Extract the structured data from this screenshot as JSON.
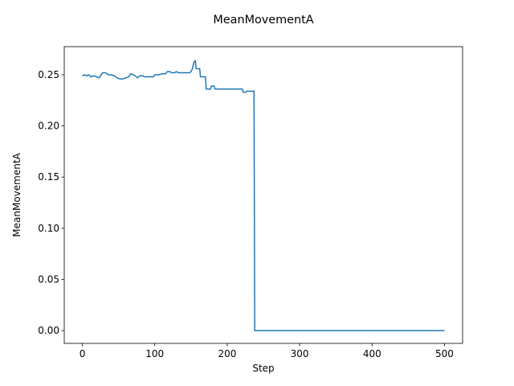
{
  "chart_data": {
    "type": "line",
    "title": "MeanMovementA",
    "xlabel": "Step",
    "ylabel": "MeanMovementA",
    "xlim": [
      -25,
      525
    ],
    "ylim": [
      -0.0125,
      0.2775
    ],
    "xticks": [
      0,
      100,
      200,
      300,
      400,
      500
    ],
    "xtick_labels": [
      "0",
      "100",
      "200",
      "300",
      "400",
      "500"
    ],
    "yticks": [
      0.0,
      0.05,
      0.1,
      0.15,
      0.2,
      0.25
    ],
    "ytick_labels": [
      "0.00",
      "0.05",
      "0.10",
      "0.15",
      "0.20",
      "0.25"
    ],
    "grid": false,
    "series": [
      {
        "color": "#1f77b4",
        "points": [
          [
            0,
            0.249
          ],
          [
            3,
            0.25
          ],
          [
            6,
            0.249
          ],
          [
            9,
            0.25
          ],
          [
            12,
            0.248
          ],
          [
            16,
            0.249
          ],
          [
            20,
            0.248
          ],
          [
            23,
            0.247
          ],
          [
            26,
            0.25
          ],
          [
            28,
            0.252
          ],
          [
            32,
            0.252
          ],
          [
            36,
            0.25
          ],
          [
            40,
            0.25
          ],
          [
            44,
            0.249
          ],
          [
            48,
            0.247
          ],
          [
            52,
            0.246
          ],
          [
            56,
            0.246
          ],
          [
            60,
            0.247
          ],
          [
            64,
            0.248
          ],
          [
            67,
            0.251
          ],
          [
            70,
            0.25
          ],
          [
            73,
            0.249
          ],
          [
            76,
            0.247
          ],
          [
            79,
            0.249
          ],
          [
            83,
            0.249
          ],
          [
            86,
            0.248
          ],
          [
            90,
            0.248
          ],
          [
            95,
            0.248
          ],
          [
            98,
            0.248
          ],
          [
            100,
            0.25
          ],
          [
            105,
            0.25
          ],
          [
            110,
            0.251
          ],
          [
            115,
            0.251
          ],
          [
            117,
            0.253
          ],
          [
            121,
            0.253
          ],
          [
            123,
            0.252
          ],
          [
            127,
            0.252
          ],
          [
            130,
            0.253
          ],
          [
            133,
            0.252
          ],
          [
            140,
            0.252
          ],
          [
            148,
            0.252
          ],
          [
            150,
            0.253
          ],
          [
            152,
            0.256
          ],
          [
            154,
            0.262
          ],
          [
            156,
            0.264
          ],
          [
            157,
            0.256
          ],
          [
            162,
            0.256
          ],
          [
            163,
            0.248
          ],
          [
            170,
            0.248
          ],
          [
            171,
            0.236
          ],
          [
            177,
            0.236
          ],
          [
            178,
            0.239
          ],
          [
            182,
            0.239
          ],
          [
            183,
            0.236
          ],
          [
            190,
            0.236
          ],
          [
            200,
            0.236
          ],
          [
            210,
            0.236
          ],
          [
            221,
            0.236
          ],
          [
            222,
            0.233
          ],
          [
            226,
            0.233
          ],
          [
            227,
            0.234
          ],
          [
            237,
            0.234
          ],
          [
            238,
            0.0
          ],
          [
            300,
            0.0
          ],
          [
            400,
            0.0
          ],
          [
            500,
            0.0
          ]
        ]
      }
    ]
  }
}
